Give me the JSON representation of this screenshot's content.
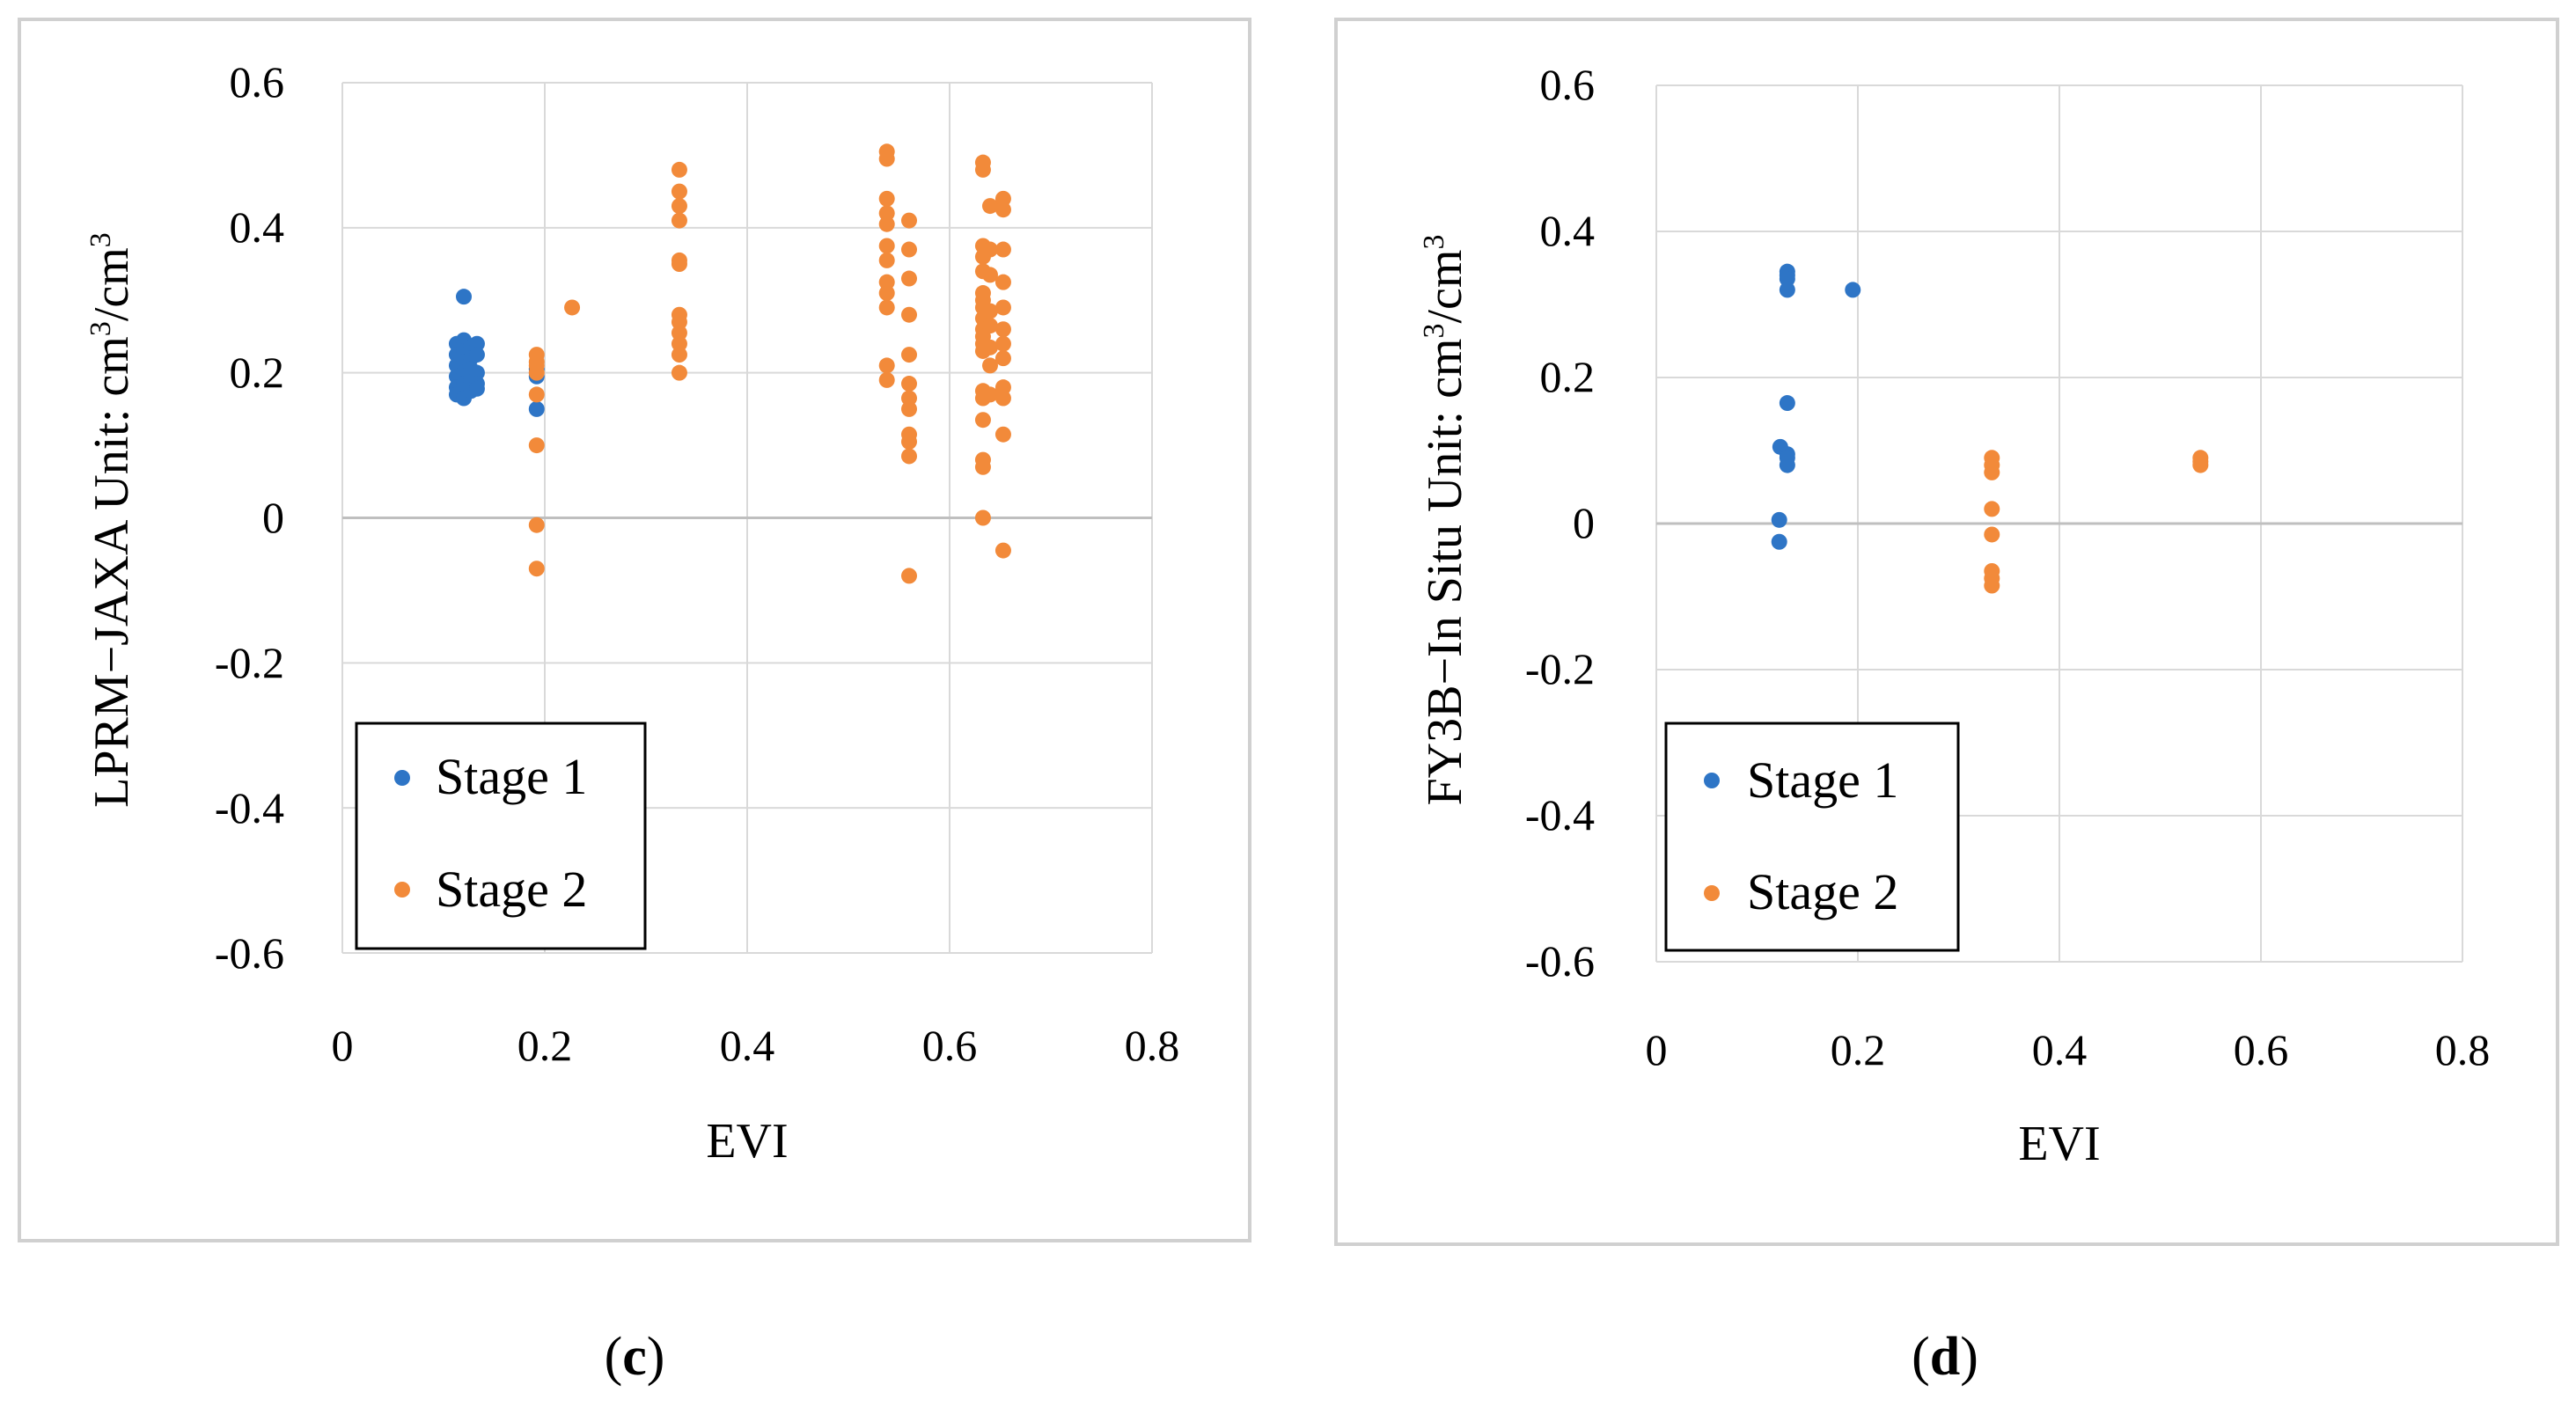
{
  "figure": {
    "panels": [
      {
        "caption_open": "(",
        "caption_letter": "c",
        "caption_close": ")"
      },
      {
        "caption_open": "(",
        "caption_letter": "d",
        "caption_close": ")"
      }
    ]
  },
  "chart_data": [
    {
      "type": "scatter",
      "title": "",
      "xlabel": "EVI",
      "ylabel_prefix": "LPRM−JAXA",
      "ylabel_unit_main": "Unit: cm",
      "ylabel_unit_sup1": "3",
      "ylabel_unit_mid": "/cm",
      "ylabel_unit_sup2": "3",
      "xlim": [
        0,
        0.8
      ],
      "ylim": [
        -0.6,
        0.6
      ],
      "x_ticks": [
        0,
        0.2,
        0.4,
        0.6,
        0.8
      ],
      "x_tick_labels": [
        "0",
        "0.2",
        "0.4",
        "0.6",
        "0.8"
      ],
      "y_ticks": [
        -0.6,
        -0.4,
        -0.2,
        0,
        0.2,
        0.4,
        0.6
      ],
      "y_tick_labels": [
        "-0.6",
        "-0.4",
        "-0.2",
        "0",
        "0.2",
        "0.4",
        "0.6"
      ],
      "grid": true,
      "legend_position": "lower-left",
      "series": [
        {
          "name": "Stage 1",
          "color": "#2e75c6",
          "points": [
            [
              0.113,
              0.24
            ],
            [
              0.113,
              0.225
            ],
            [
              0.113,
              0.21
            ],
            [
              0.113,
              0.195
            ],
            [
              0.113,
              0.18
            ],
            [
              0.113,
              0.17
            ],
            [
              0.12,
              0.305
            ],
            [
              0.12,
              0.245
            ],
            [
              0.12,
              0.23
            ],
            [
              0.12,
              0.215
            ],
            [
              0.12,
              0.2
            ],
            [
              0.12,
              0.185
            ],
            [
              0.12,
              0.165
            ],
            [
              0.127,
              0.235
            ],
            [
              0.127,
              0.22
            ],
            [
              0.127,
              0.205
            ],
            [
              0.127,
              0.19
            ],
            [
              0.127,
              0.175
            ],
            [
              0.133,
              0.24
            ],
            [
              0.133,
              0.225
            ],
            [
              0.133,
              0.2
            ],
            [
              0.133,
              0.185
            ],
            [
              0.133,
              0.178
            ],
            [
              0.192,
              0.205
            ],
            [
              0.192,
              0.195
            ],
            [
              0.192,
              0.15
            ]
          ]
        },
        {
          "name": "Stage 2",
          "color": "#f28a3a",
          "points": [
            [
              0.192,
              0.225
            ],
            [
              0.192,
              0.215
            ],
            [
              0.192,
              0.21
            ],
            [
              0.192,
              0.2
            ],
            [
              0.192,
              0.17
            ],
            [
              0.192,
              0.1
            ],
            [
              0.192,
              -0.01
            ],
            [
              0.192,
              -0.07
            ],
            [
              0.227,
              0.29
            ],
            [
              0.333,
              0.48
            ],
            [
              0.333,
              0.45
            ],
            [
              0.333,
              0.43
            ],
            [
              0.333,
              0.41
            ],
            [
              0.333,
              0.355
            ],
            [
              0.333,
              0.35
            ],
            [
              0.333,
              0.28
            ],
            [
              0.333,
              0.27
            ],
            [
              0.333,
              0.255
            ],
            [
              0.333,
              0.24
            ],
            [
              0.333,
              0.225
            ],
            [
              0.333,
              0.2
            ],
            [
              0.538,
              0.505
            ],
            [
              0.538,
              0.495
            ],
            [
              0.538,
              0.44
            ],
            [
              0.538,
              0.42
            ],
            [
              0.538,
              0.405
            ],
            [
              0.538,
              0.375
            ],
            [
              0.538,
              0.355
            ],
            [
              0.538,
              0.325
            ],
            [
              0.538,
              0.31
            ],
            [
              0.538,
              0.29
            ],
            [
              0.538,
              0.21
            ],
            [
              0.538,
              0.19
            ],
            [
              0.56,
              0.41
            ],
            [
              0.56,
              0.37
            ],
            [
              0.56,
              0.33
            ],
            [
              0.56,
              0.28
            ],
            [
              0.56,
              0.225
            ],
            [
              0.56,
              0.185
            ],
            [
              0.56,
              0.165
            ],
            [
              0.56,
              0.15
            ],
            [
              0.56,
              0.115
            ],
            [
              0.56,
              0.105
            ],
            [
              0.56,
              0.085
            ],
            [
              0.56,
              -0.08
            ],
            [
              0.633,
              0.49
            ],
            [
              0.633,
              0.48
            ],
            [
              0.633,
              0.375
            ],
            [
              0.633,
              0.36
            ],
            [
              0.633,
              0.34
            ],
            [
              0.633,
              0.31
            ],
            [
              0.633,
              0.3
            ],
            [
              0.633,
              0.29
            ],
            [
              0.633,
              0.275
            ],
            [
              0.633,
              0.26
            ],
            [
              0.633,
              0.25
            ],
            [
              0.633,
              0.24
            ],
            [
              0.633,
              0.23
            ],
            [
              0.633,
              0.175
            ],
            [
              0.633,
              0.165
            ],
            [
              0.633,
              0.135
            ],
            [
              0.633,
              0.08
            ],
            [
              0.633,
              0.07
            ],
            [
              0.633,
              0.0
            ],
            [
              0.64,
              0.43
            ],
            [
              0.64,
              0.37
            ],
            [
              0.64,
              0.335
            ],
            [
              0.64,
              0.285
            ],
            [
              0.64,
              0.265
            ],
            [
              0.64,
              0.235
            ],
            [
              0.64,
              0.21
            ],
            [
              0.64,
              0.17
            ],
            [
              0.653,
              0.44
            ],
            [
              0.653,
              0.425
            ],
            [
              0.653,
              0.37
            ],
            [
              0.653,
              0.325
            ],
            [
              0.653,
              0.29
            ],
            [
              0.653,
              0.26
            ],
            [
              0.653,
              0.24
            ],
            [
              0.653,
              0.22
            ],
            [
              0.653,
              0.18
            ],
            [
              0.653,
              0.165
            ],
            [
              0.653,
              0.115
            ],
            [
              0.653,
              -0.045
            ]
          ]
        }
      ]
    },
    {
      "type": "scatter",
      "title": "",
      "xlabel": "EVI",
      "ylabel_prefix": "FY3B−In Situ",
      "ylabel_unit_main": "Unit: cm",
      "ylabel_unit_sup1": "3",
      "ylabel_unit_mid": "/cm",
      "ylabel_unit_sup2": "3",
      "xlim": [
        0,
        0.8
      ],
      "ylim": [
        -0.6,
        0.6
      ],
      "x_ticks": [
        0,
        0.2,
        0.4,
        0.6,
        0.8
      ],
      "x_tick_labels": [
        "0",
        "0.2",
        "0.4",
        "0.6",
        "0.8"
      ],
      "y_ticks": [
        -0.6,
        -0.4,
        -0.2,
        0,
        0.2,
        0.4,
        0.6
      ],
      "y_tick_labels": [
        "-0.6",
        "-0.4",
        "-0.2",
        "0",
        "0.2",
        "0.4",
        "0.6"
      ],
      "grid": true,
      "legend_position": "lower-left",
      "series": [
        {
          "name": "Stage 1",
          "color": "#2e75c6",
          "points": [
            [
              0.13,
              0.345
            ],
            [
              0.13,
              0.34
            ],
            [
              0.13,
              0.335
            ],
            [
              0.13,
              0.32
            ],
            [
              0.195,
              0.32
            ],
            [
              0.13,
              0.165
            ],
            [
              0.123,
              0.105
            ],
            [
              0.13,
              0.095
            ],
            [
              0.13,
              0.09
            ],
            [
              0.13,
              0.08
            ],
            [
              0.122,
              0.005
            ],
            [
              0.122,
              -0.025
            ]
          ]
        },
        {
          "name": "Stage 2",
          "color": "#f28a3a",
          "points": [
            [
              0.333,
              0.09
            ],
            [
              0.333,
              0.08
            ],
            [
              0.333,
              0.07
            ],
            [
              0.333,
              0.02
            ],
            [
              0.333,
              -0.015
            ],
            [
              0.333,
              -0.065
            ],
            [
              0.333,
              -0.075
            ],
            [
              0.333,
              -0.085
            ],
            [
              0.54,
              0.09
            ],
            [
              0.54,
              0.085
            ],
            [
              0.54,
              0.08
            ]
          ]
        }
      ]
    }
  ]
}
